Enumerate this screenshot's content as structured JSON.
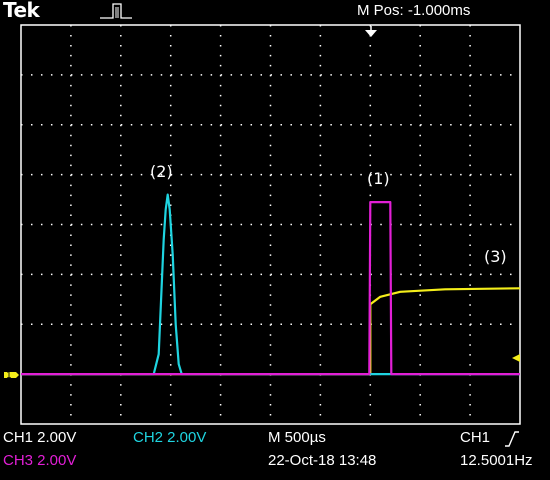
{
  "header": {
    "brand": "Tek",
    "trigger_mode_icon": "pulse-trigger-icon",
    "position_readout": "M Pos: -1.000ms"
  },
  "footer": {
    "ch1_setting": "CH1  2.00V",
    "ch2_setting": "CH2  2.00V",
    "ch3_setting": "CH3  2.00V",
    "timebase": "M 500µs",
    "date_time": "22-Oct-18 13:48",
    "trigger_source": "CH1",
    "trigger_slope_icon": "rising-edge-icon",
    "frequency": "12.5001Hz"
  },
  "annotations": {
    "trace_1": "(1)",
    "trace_2": "(2)",
    "trace_3": "(3)"
  },
  "colors": {
    "ch1": "#f4ee1a",
    "ch2": "#1fd4e0",
    "ch3": "#e21fd6",
    "grid": "#ffffff",
    "background": "#000000"
  },
  "chart_data": {
    "type": "line",
    "title": "",
    "xlabel": "",
    "ylabel": "",
    "grid": true,
    "divisions": {
      "x": 10,
      "y": 8
    },
    "x_units": "div",
    "y_units": "div",
    "xlim": [
      0,
      10
    ],
    "ylim": [
      -4,
      4
    ],
    "series": [
      {
        "name": "CH1",
        "color": "#f4ee1a",
        "points": [
          [
            0,
            -3.0
          ],
          [
            7.0,
            -3.0
          ],
          [
            7.0,
            -1.6
          ],
          [
            7.2,
            -1.45
          ],
          [
            7.6,
            -1.35
          ],
          [
            8.5,
            -1.3
          ],
          [
            10,
            -1.28
          ]
        ]
      },
      {
        "name": "CH2",
        "color": "#1fd4e0",
        "points": [
          [
            0,
            -3.0
          ],
          [
            2.66,
            -3.0
          ],
          [
            2.76,
            -2.6
          ],
          [
            2.86,
            -0.3
          ],
          [
            2.9,
            0.3
          ],
          [
            2.94,
            0.6
          ],
          [
            2.98,
            0.3
          ],
          [
            3.04,
            -0.6
          ],
          [
            3.1,
            -2.0
          ],
          [
            3.16,
            -2.8
          ],
          [
            3.22,
            -3.0
          ],
          [
            10,
            -3.0
          ]
        ]
      },
      {
        "name": "CH3",
        "color": "#e21fd6",
        "points": [
          [
            0,
            -3.0
          ],
          [
            6.98,
            -3.0
          ],
          [
            7.0,
            0.45
          ],
          [
            7.4,
            0.45
          ],
          [
            7.42,
            -3.0
          ],
          [
            10,
            -3.0
          ]
        ]
      }
    ]
  }
}
